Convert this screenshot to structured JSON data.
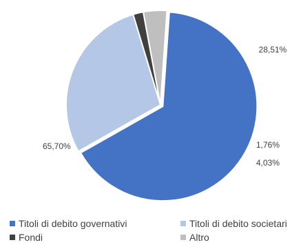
{
  "chart_data": {
    "type": "pie",
    "title": "",
    "start_angle_deg": 4,
    "slices": [
      {
        "label": "Titoli di debito governativi",
        "value": 65.7,
        "display": "65,70%",
        "color": "#4472C4"
      },
      {
        "label": "Titoli di debito societari",
        "value": 28.51,
        "display": "28,51%",
        "color": "#B4C7E7"
      },
      {
        "label": "Fondi",
        "value": 1.76,
        "display": "1,76%",
        "color": "#404040"
      },
      {
        "label": "Altro",
        "value": 4.03,
        "display": "4,03%",
        "color": "#BFBFBF"
      }
    ],
    "draw_order": [
      1,
      2,
      3,
      0
    ],
    "legend_position": "bottom"
  }
}
